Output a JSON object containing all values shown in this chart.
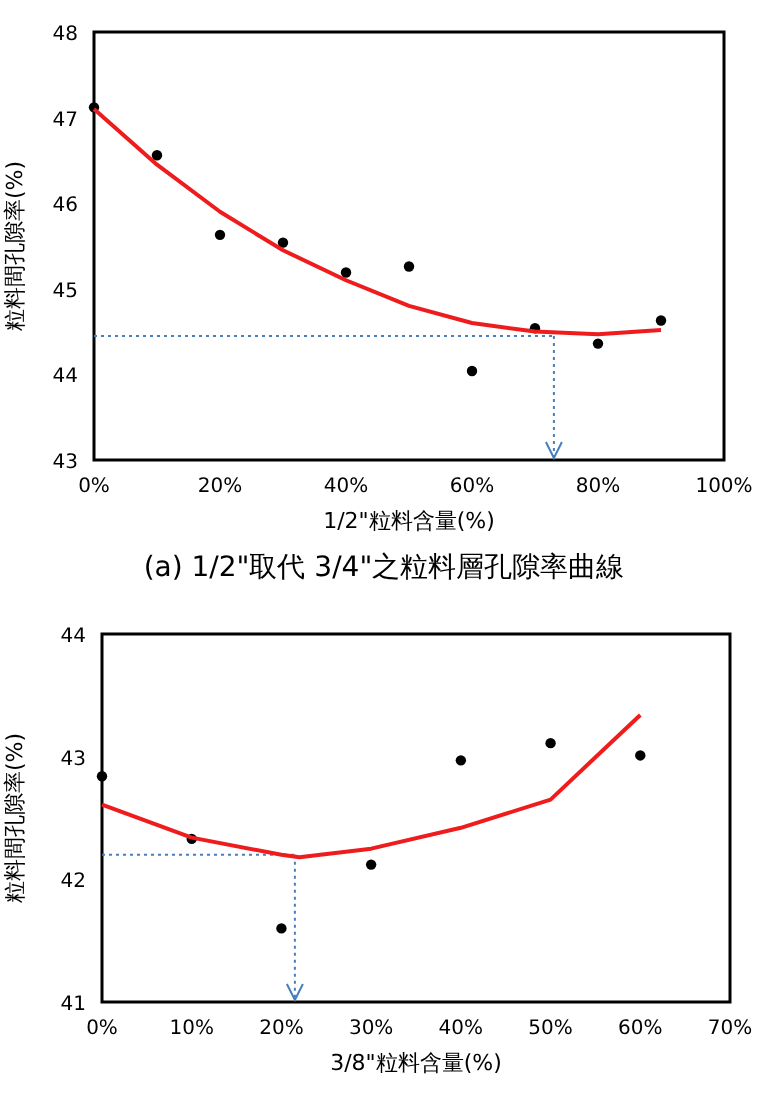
{
  "chart_data": [
    {
      "type": "scatter",
      "xlabel": "1/2\"粒料含量(%)",
      "ylabel": "粒料間孔隙率(%)",
      "annotations": [
        "(a) 1/2\"取代 3/4\"之粒料層孔隙率曲線"
      ],
      "xlim": [
        0,
        100
      ],
      "xticks": [
        {
          "value": 0,
          "label": "0%"
        },
        {
          "value": 20,
          "label": "20%"
        },
        {
          "value": 40,
          "label": "40%"
        },
        {
          "value": 60,
          "label": "60%"
        },
        {
          "value": 80,
          "label": "80%"
        },
        {
          "value": 100,
          "label": "100%"
        }
      ],
      "ylim": [
        43,
        48
      ],
      "yticks": [
        43,
        44,
        45,
        46,
        47,
        48
      ],
      "grid": false,
      "series": [
        {
          "color": "#000000",
          "marker": "circle",
          "x": [
            0,
            10,
            20,
            30,
            40,
            50,
            60,
            70,
            80,
            90
          ],
          "values": [
            47.12,
            46.56,
            45.63,
            45.54,
            45.19,
            45.26,
            44.04,
            44.54,
            44.36,
            44.63
          ]
        },
        {
          "type": "line",
          "color": "#ee1c1c",
          "marker": "none",
          "line_style": "solid",
          "x": [
            0,
            10,
            20,
            30,
            40,
            50,
            60,
            70,
            80,
            90
          ],
          "values": [
            47.1,
            46.45,
            45.9,
            45.45,
            45.1,
            44.8,
            44.6,
            44.5,
            44.47,
            44.52
          ]
        }
      ],
      "ref_lines": [
        {
          "axis": "y",
          "value": 44.45,
          "color": "#4a7ebb",
          "line_style": "dotted"
        },
        {
          "axis": "x",
          "value": 73,
          "color": "#4a7ebb",
          "line_style": "dotted"
        }
      ]
    },
    {
      "type": "scatter",
      "xlabel": "3/8\"粒料含量(%)",
      "ylabel": "粒料間孔隙率(%)",
      "xlim": [
        0,
        70
      ],
      "xticks": [
        {
          "value": 0,
          "label": "0%"
        },
        {
          "value": 10,
          "label": "10%"
        },
        {
          "value": 20,
          "label": "20%"
        },
        {
          "value": 30,
          "label": "30%"
        },
        {
          "value": 40,
          "label": "40%"
        },
        {
          "value": 50,
          "label": "50%"
        },
        {
          "value": 60,
          "label": "60%"
        },
        {
          "value": 70,
          "label": "70%"
        }
      ],
      "ylim": [
        41,
        44
      ],
      "yticks": [
        41,
        42,
        43,
        44
      ],
      "grid": false,
      "series": [
        {
          "color": "#000000",
          "marker": "circle",
          "x": [
            0,
            10,
            20,
            30,
            40,
            50,
            60
          ],
          "values": [
            42.84,
            42.33,
            41.6,
            42.12,
            42.97,
            43.11,
            43.01
          ]
        },
        {
          "type": "line",
          "color": "#ee1c1c",
          "marker": "none",
          "line_style": "solid",
          "x": [
            0,
            10,
            20,
            22,
            30,
            40,
            50,
            60
          ],
          "values": [
            42.61,
            42.34,
            42.2,
            42.18,
            42.25,
            42.42,
            42.65,
            43.34
          ]
        }
      ],
      "ref_lines": [
        {
          "axis": "y",
          "value": 42.2,
          "color": "#4a7ebb",
          "line_style": "dotted"
        },
        {
          "axis": "x",
          "value": 21.5,
          "color": "#4a7ebb",
          "line_style": "dotted"
        }
      ]
    }
  ]
}
